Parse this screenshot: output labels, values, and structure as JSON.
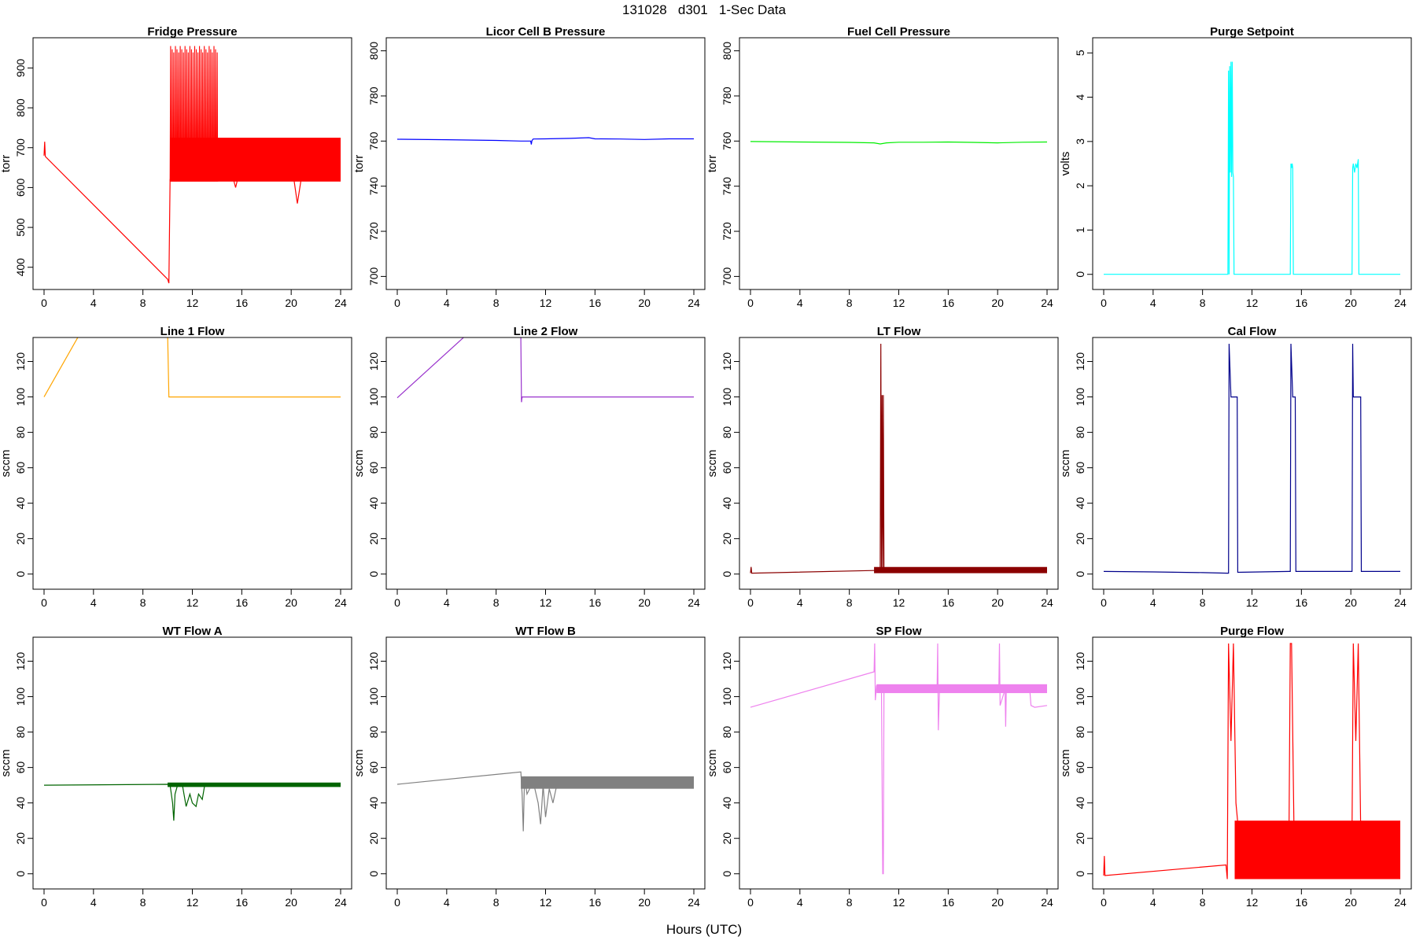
{
  "figure": {
    "title": "131028   d301   1-Sec Data",
    "xlabel": "Hours (UTC)"
  },
  "chart_data": [
    {
      "type": "line",
      "title": "Fridge Pressure",
      "ylabel": "torr",
      "color": "#ff0000",
      "xlim": [
        0,
        24
      ],
      "ylim": [
        360,
        960
      ],
      "xticks": [
        "0",
        "4",
        "8",
        "12",
        "16",
        "20",
        "24"
      ],
      "yticks": [
        "400",
        "500",
        "600",
        "700",
        "800",
        "900"
      ],
      "x": [
        0,
        0.05,
        0.1,
        10,
        10.1,
        10.2,
        10.5,
        11,
        11.5,
        12,
        13,
        14,
        15,
        15.5,
        16,
        17,
        18,
        19,
        20,
        20.5,
        21,
        22,
        23,
        24
      ],
      "y": [
        680,
        715,
        678,
        370,
        360,
        620,
        640,
        650,
        648,
        650,
        655,
        650,
        660,
        600,
        665,
        662,
        660,
        665,
        668,
        560,
        660,
        665,
        660,
        665
      ],
      "band_from_x": 10.2,
      "band_low": 615,
      "band_high": 725,
      "spikes": {
        "x_start": 10.2,
        "x_end": 14.0,
        "peak": 955
      }
    },
    {
      "type": "line",
      "title": "Licor Cell B Pressure",
      "ylabel": "torr",
      "color": "#0000ff",
      "xlim": [
        0,
        24
      ],
      "ylim": [
        697,
        803
      ],
      "xticks": [
        "0",
        "4",
        "8",
        "12",
        "16",
        "20",
        "24"
      ],
      "yticks": [
        "700",
        "720",
        "740",
        "760",
        "780",
        "800"
      ],
      "x": [
        0,
        4,
        8,
        10,
        10.8,
        10.85,
        10.9,
        11,
        12,
        14,
        15.5,
        16,
        18,
        20,
        22,
        24
      ],
      "y": [
        760.8,
        760.6,
        760.3,
        760.0,
        760.0,
        758.5,
        760.2,
        760.9,
        761.0,
        761.2,
        761.5,
        761.0,
        760.9,
        760.7,
        761.0,
        761.0
      ]
    },
    {
      "type": "line",
      "title": "Fuel Cell Pressure",
      "ylabel": "torr",
      "color": "#00ee00",
      "xlim": [
        0,
        24
      ],
      "ylim": [
        697,
        803
      ],
      "xticks": [
        "0",
        "4",
        "8",
        "12",
        "16",
        "20",
        "24"
      ],
      "yticks": [
        "700",
        "720",
        "740",
        "760",
        "780",
        "800"
      ],
      "x": [
        0,
        4,
        8,
        10,
        10.5,
        11,
        12,
        14,
        16,
        18,
        20,
        22,
        24
      ],
      "y": [
        759.8,
        759.6,
        759.4,
        759.2,
        758.7,
        759.2,
        759.5,
        759.5,
        759.6,
        759.4,
        759.2,
        759.5,
        759.6
      ]
    },
    {
      "type": "line",
      "title": "Purge Setpoint",
      "ylabel": "volts",
      "color": "#00ffff",
      "xlim": [
        0,
        24
      ],
      "ylim": [
        -0.2,
        5.2
      ],
      "xticks": [
        "0",
        "4",
        "8",
        "12",
        "16",
        "20",
        "24"
      ],
      "yticks": [
        "0",
        "1",
        "2",
        "3",
        "4",
        "5"
      ],
      "x": [
        0,
        10.05,
        10.1,
        10.15,
        10.2,
        10.25,
        10.3,
        10.35,
        10.4,
        10.45,
        10.5,
        10.55,
        10.6,
        15.1,
        15.15,
        15.2,
        15.25,
        15.3,
        15.35,
        15.4,
        20.1,
        20.15,
        20.2,
        20.3,
        20.4,
        20.5,
        20.6,
        20.65,
        20.7,
        24
      ],
      "y": [
        0,
        0,
        4.6,
        0,
        4.7,
        2.3,
        4.8,
        2.2,
        4.8,
        2.3,
        2.2,
        0,
        0,
        0,
        2.5,
        2.4,
        2.5,
        2.4,
        0,
        0,
        0,
        2.4,
        2.5,
        2.3,
        2.5,
        2.4,
        2.6,
        0,
        0,
        0
      ]
    },
    {
      "type": "line",
      "title": "Line 1 Flow",
      "ylabel": "sccm",
      "color": "#ffa500",
      "xlim": [
        0,
        24
      ],
      "ylim": [
        -5,
        130
      ],
      "xticks": [
        "0",
        "4",
        "8",
        "12",
        "16",
        "20",
        "24"
      ],
      "yticks": [
        "0",
        "20",
        "40",
        "60",
        "80",
        "100",
        "120"
      ],
      "x": [
        0,
        10,
        10,
        10.1,
        24
      ],
      "y": [
        100,
        223,
        135,
        100,
        100
      ]
    },
    {
      "type": "line",
      "title": "Line 2 Flow",
      "ylabel": "sccm",
      "color": "#9932cc",
      "xlim": [
        0,
        24
      ],
      "ylim": [
        -5,
        130
      ],
      "xticks": [
        "0",
        "4",
        "8",
        "12",
        "16",
        "20",
        "24"
      ],
      "yticks": [
        "0",
        "20",
        "40",
        "60",
        "80",
        "100",
        "120"
      ],
      "x": [
        0,
        10,
        10,
        10.05,
        10.1,
        24
      ],
      "y": [
        99.5,
        163,
        132,
        97,
        100,
        100
      ]
    },
    {
      "type": "line",
      "title": "LT Flow",
      "ylabel": "sccm",
      "color": "#8b0000",
      "xlim": [
        0,
        24
      ],
      "ylim": [
        -5,
        130
      ],
      "xticks": [
        "0",
        "4",
        "8",
        "12",
        "16",
        "20",
        "24"
      ],
      "yticks": [
        "0",
        "20",
        "40",
        "60",
        "80",
        "100",
        "120"
      ],
      "x": [
        0,
        0.05,
        0.1,
        10,
        10.5,
        10.55,
        10.6,
        10.65,
        10.7,
        10.75,
        10.8,
        24
      ],
      "y": [
        0.5,
        4,
        0.5,
        2,
        2,
        130,
        3,
        101,
        2,
        101,
        3,
        3
      ],
      "band_from_x": 10,
      "band_low": 0.5,
      "band_high": 4
    },
    {
      "type": "line",
      "title": "Cal Flow",
      "ylabel": "sccm",
      "color": "#00008b",
      "xlim": [
        0,
        24
      ],
      "ylim": [
        -5,
        130
      ],
      "xticks": [
        "0",
        "4",
        "8",
        "12",
        "16",
        "20",
        "24"
      ],
      "yticks": [
        "0",
        "20",
        "40",
        "60",
        "80",
        "100",
        "120"
      ],
      "x": [
        0,
        4,
        8,
        10,
        10.1,
        10.15,
        10.3,
        10.8,
        10.85,
        15,
        15.1,
        15.15,
        15.3,
        15.5,
        15.55,
        20.1,
        20.15,
        20.2,
        20.4,
        20.8,
        20.85,
        24
      ],
      "y": [
        1.5,
        1.2,
        0.8,
        0.5,
        0.5,
        130,
        100,
        100,
        1,
        1.5,
        1.5,
        130,
        100,
        100,
        1.5,
        1.5,
        130,
        100,
        100,
        100,
        1.5,
        1.5
      ]
    },
    {
      "type": "line",
      "title": "WT Flow A",
      "ylabel": "sccm",
      "color": "#006400",
      "xlim": [
        0,
        24
      ],
      "ylim": [
        -5,
        130
      ],
      "xticks": [
        "0",
        "4",
        "8",
        "12",
        "16",
        "20",
        "24"
      ],
      "yticks": [
        "0",
        "20",
        "40",
        "60",
        "80",
        "100",
        "120"
      ],
      "x": [
        0,
        10,
        10.2,
        10.4,
        10.5,
        10.6,
        10.8,
        11,
        11.2,
        11.5,
        11.8,
        12,
        12.3,
        12.5,
        12.8,
        13,
        13.5,
        24
      ],
      "y": [
        50,
        50.5,
        50,
        40,
        30,
        45,
        50,
        51,
        50,
        38,
        45,
        40,
        38,
        45,
        42,
        50,
        50.5,
        50.5
      ],
      "band_from_x": 10,
      "band_low": 49,
      "band_high": 51.5
    },
    {
      "type": "line",
      "title": "WT Flow B",
      "ylabel": "sccm",
      "color": "#808080",
      "xlim": [
        0,
        24
      ],
      "ylim": [
        -5,
        130
      ],
      "xticks": [
        "0",
        "4",
        "8",
        "12",
        "16",
        "20",
        "24"
      ],
      "yticks": [
        "0",
        "20",
        "40",
        "60",
        "80",
        "100",
        "120"
      ],
      "x": [
        0,
        10,
        10.1,
        10.2,
        10.3,
        10.5,
        11,
        11.4,
        11.6,
        11.8,
        12,
        12.3,
        12.6,
        13,
        14,
        16,
        18,
        20,
        22,
        24
      ],
      "y": [
        50.5,
        57.5,
        45,
        24,
        55,
        45,
        52,
        40,
        28,
        50,
        32,
        48,
        40,
        53,
        52,
        51.5,
        51,
        51,
        50.5,
        51
      ],
      "band_from_x": 10,
      "band_low": 48,
      "band_high": 55
    },
    {
      "type": "line",
      "title": "SP Flow",
      "ylabel": "sccm",
      "color": "#ee82ee",
      "xlim": [
        0,
        24
      ],
      "ylim": [
        -5,
        130
      ],
      "xticks": [
        "0",
        "4",
        "8",
        "12",
        "16",
        "20",
        "24"
      ],
      "yticks": [
        "0",
        "20",
        "40",
        "60",
        "80",
        "100",
        "120"
      ],
      "x": [
        0,
        10,
        10.05,
        10.1,
        10.2,
        10.6,
        10.7,
        10.75,
        10.8,
        10.9,
        11,
        15.1,
        15.15,
        15.2,
        15.3,
        20.1,
        20.15,
        20.2,
        20.6,
        20.65,
        20.7,
        22.6,
        22.7,
        23,
        24
      ],
      "y": [
        94,
        114,
        130,
        98,
        106,
        105,
        0,
        0,
        105,
        105,
        105,
        104,
        130,
        81,
        104,
        105,
        130,
        95,
        104,
        83,
        104,
        104,
        95,
        94,
        95
      ],
      "band_from_x": 10.2,
      "band_low": 102,
      "band_high": 107
    },
    {
      "type": "line",
      "title": "Purge Flow",
      "ylabel": "sccm",
      "color": "#ff0000",
      "xlim": [
        0,
        24
      ],
      "ylim": [
        -5,
        130
      ],
      "xticks": [
        "0",
        "4",
        "8",
        "12",
        "16",
        "20",
        "24"
      ],
      "yticks": [
        "0",
        "20",
        "40",
        "60",
        "80",
        "100",
        "120"
      ],
      "x": [
        0,
        0.05,
        0.1,
        9.9,
        10,
        10.1,
        10.3,
        10.5,
        10.7,
        10.9,
        15,
        15.1,
        15.2,
        15.4,
        20.1,
        20.2,
        20.4,
        20.6,
        20.8,
        24
      ],
      "y": [
        -1,
        10,
        -1,
        5,
        -3,
        130,
        75,
        130,
        40,
        25,
        25,
        130,
        130,
        25,
        25,
        130,
        75,
        130,
        25,
        25
      ],
      "band_from_x": 10.6,
      "band_low": -3,
      "band_high": 30
    }
  ]
}
